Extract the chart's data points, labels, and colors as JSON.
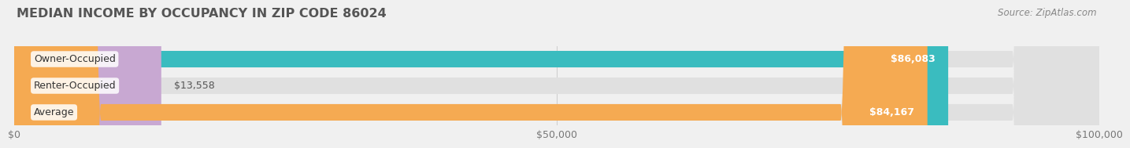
{
  "title": "MEDIAN INCOME BY OCCUPANCY IN ZIP CODE 86024",
  "source": "Source: ZipAtlas.com",
  "categories": [
    "Owner-Occupied",
    "Renter-Occupied",
    "Average"
  ],
  "values": [
    86083,
    13558,
    84167
  ],
  "bar_colors": [
    "#3abcbf",
    "#c8a8d2",
    "#f5aa52"
  ],
  "bar_labels": [
    "$86,083",
    "$13,558",
    "$84,167"
  ],
  "label_inside": [
    true,
    false,
    true
  ],
  "xlim": [
    0,
    100000
  ],
  "xtick_labels": [
    "$0",
    "$50,000",
    "$100,000"
  ],
  "xtick_vals": [
    0,
    50000,
    100000
  ],
  "bg_color": "#f0f0f0",
  "bar_bg_color": "#e0e0e0",
  "title_color": "#555555",
  "title_fontsize": 11.5,
  "cat_fontsize": 9,
  "val_fontsize": 9,
  "tick_fontsize": 9,
  "source_fontsize": 8.5
}
